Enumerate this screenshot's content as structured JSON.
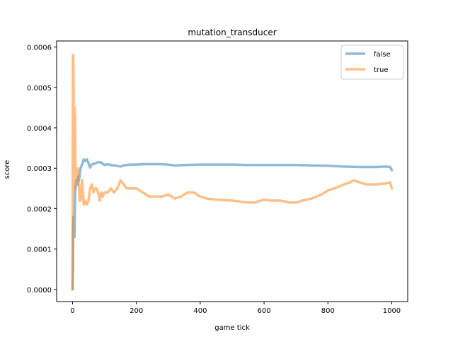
{
  "chart_data": {
    "type": "line",
    "title": "mutation_transducer",
    "xlabel": "game tick",
    "ylabel": "score",
    "xlim": [
      -50,
      1050
    ],
    "ylim": [
      -3e-05,
      0.000615
    ],
    "xticks": [
      0,
      200,
      400,
      600,
      800,
      1000
    ],
    "xtick_labels": [
      "0",
      "200",
      "400",
      "600",
      "800",
      "1000"
    ],
    "yticks": [
      0,
      0.0001,
      0.0002,
      0.0003,
      0.0004,
      0.0005,
      0.0006
    ],
    "ytick_labels": [
      "0.0000",
      "0.0001",
      "0.0002",
      "0.0003",
      "0.0004",
      "0.0005",
      "0.0006"
    ],
    "legend_position": "top-right",
    "grid": false,
    "series": [
      {
        "name": "false",
        "color": "#1f77b4",
        "x": [
          0,
          1,
          2,
          3,
          4,
          5,
          6,
          7,
          8,
          10,
          12,
          15,
          18,
          20,
          25,
          30,
          35,
          40,
          45,
          50,
          55,
          60,
          70,
          80,
          90,
          100,
          110,
          120,
          140,
          150,
          160,
          180,
          200,
          220,
          250,
          280,
          300,
          320,
          350,
          400,
          450,
          500,
          550,
          600,
          650,
          700,
          750,
          800,
          850,
          900,
          950,
          980,
          995,
          1000
        ],
        "y": [
          0.0,
          4e-05,
          0.00015,
          0.00018,
          0.00016,
          0.00014,
          0.00013,
          0.00019,
          0.00024,
          0.00026,
          0.00027,
          0.00026,
          0.00028,
          0.00027,
          0.0003,
          0.00031,
          0.000322,
          0.000318,
          0.000322,
          0.000312,
          0.000302,
          0.000309,
          0.000312,
          0.000315,
          0.000314,
          0.000308,
          0.00031,
          0.000308,
          0.000306,
          0.000304,
          0.000307,
          0.000309,
          0.000309,
          0.00031,
          0.00031,
          0.00031,
          0.000309,
          0.000307,
          0.000308,
          0.000309,
          0.000309,
          0.000309,
          0.000308,
          0.000308,
          0.000308,
          0.000308,
          0.000307,
          0.000306,
          0.000304,
          0.000303,
          0.000303,
          0.000304,
          0.000303,
          0.000295
        ]
      },
      {
        "name": "true",
        "color": "#ff7f0e",
        "x": [
          0,
          1,
          2,
          3,
          4,
          5,
          6,
          7,
          8,
          9,
          10,
          11,
          12,
          14,
          16,
          18,
          20,
          22,
          25,
          28,
          30,
          35,
          40,
          45,
          50,
          55,
          60,
          65,
          70,
          75,
          80,
          85,
          90,
          95,
          100,
          110,
          120,
          130,
          140,
          150,
          160,
          170,
          180,
          190,
          200,
          220,
          240,
          260,
          280,
          300,
          320,
          340,
          360,
          380,
          400,
          420,
          450,
          500,
          550,
          570,
          600,
          620,
          650,
          680,
          700,
          720,
          750,
          780,
          800,
          820,
          850,
          870,
          880,
          900,
          920,
          950,
          980,
          995,
          1000
        ],
        "y": [
          0.0,
          0.00058,
          0.00058,
          0.00054,
          0.0003,
          0.00025,
          0.00045,
          0.00044,
          0.00042,
          0.0003,
          0.00027,
          0.00028,
          0.00029,
          0.00028,
          0.0003,
          0.00027,
          0.00025,
          0.00022,
          0.00022,
          0.00026,
          0.00027,
          0.00021,
          0.00022,
          0.00021,
          0.00022,
          0.00025,
          0.00026,
          0.00024,
          0.00025,
          0.00025,
          0.00024,
          0.00022,
          0.00024,
          0.00023,
          0.00024,
          0.00024,
          0.00025,
          0.00024,
          0.00025,
          0.00027,
          0.00026,
          0.00025,
          0.00025,
          0.00025,
          0.00025,
          0.00024,
          0.00023,
          0.00023,
          0.00023,
          0.000235,
          0.000225,
          0.00023,
          0.00024,
          0.00024,
          0.00023,
          0.000225,
          0.000222,
          0.00022,
          0.000215,
          0.000215,
          0.000222,
          0.00022,
          0.00022,
          0.000215,
          0.000215,
          0.00022,
          0.000225,
          0.000235,
          0.000245,
          0.00025,
          0.00026,
          0.000265,
          0.00027,
          0.000265,
          0.00026,
          0.00026,
          0.000262,
          0.000265,
          0.00025
        ]
      }
    ]
  }
}
